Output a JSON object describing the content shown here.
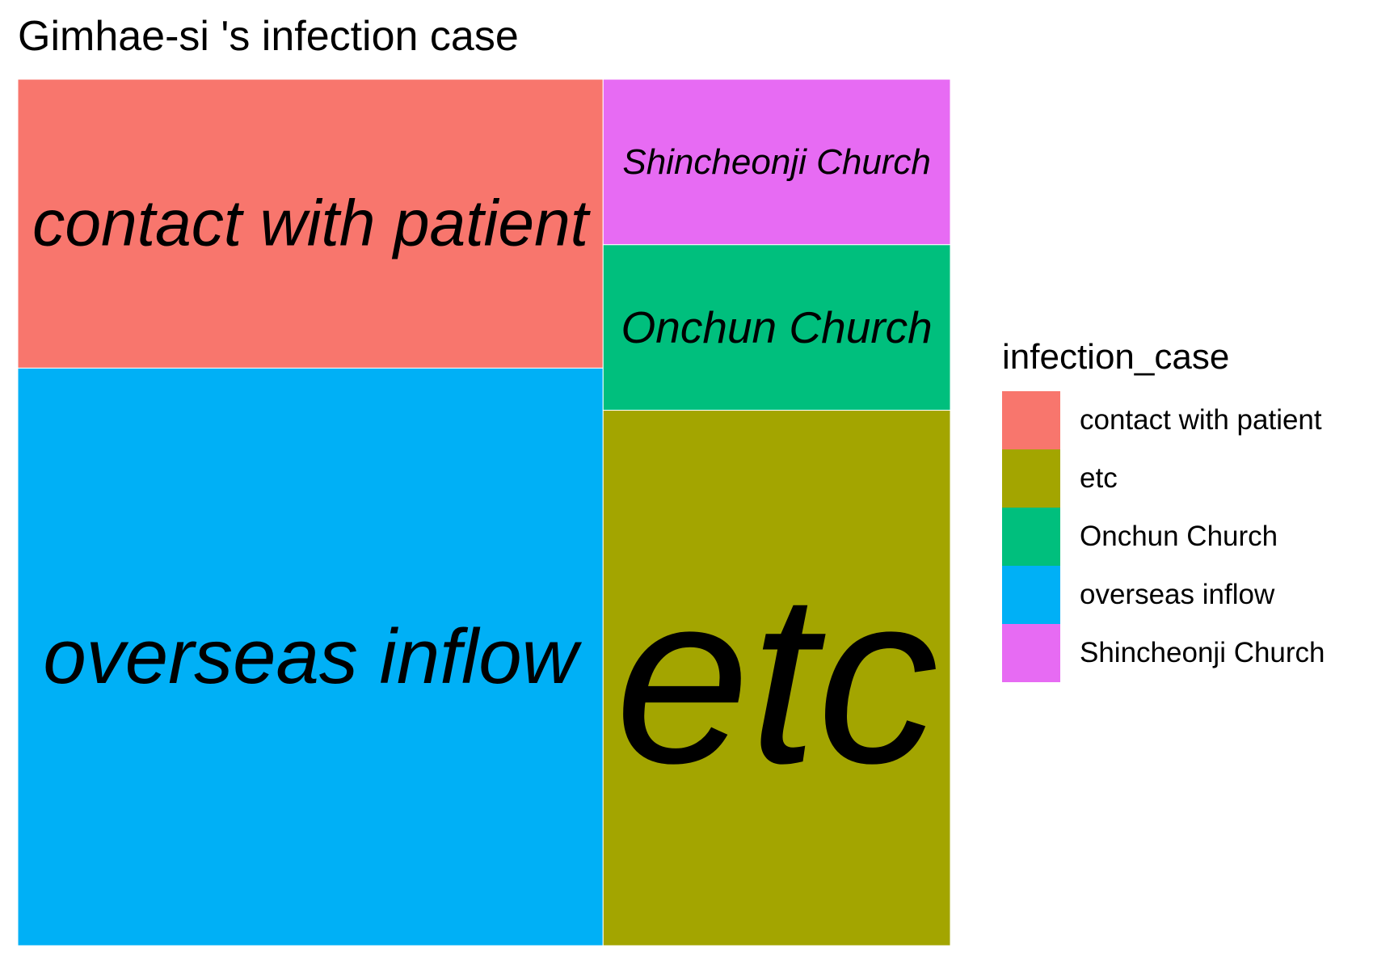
{
  "chart_data": {
    "type": "treemap",
    "title": "Gimhae-si 's infection case",
    "legend_title": "infection_case",
    "legend_position": "right",
    "legend": [
      {
        "label": "contact with patient",
        "color": "#F8766D"
      },
      {
        "label": "etc",
        "color": "#A3A500"
      },
      {
        "label": "Onchun Church",
        "color": "#00BF7D"
      },
      {
        "label": "overseas inflow",
        "color": "#00B0F6"
      },
      {
        "label": "Shincheonji Church",
        "color": "#E76BF3"
      }
    ],
    "tiles": [
      {
        "label": "overseas inflow",
        "value": 20,
        "color": "#00B0F6"
      },
      {
        "label": "etc",
        "value": 11,
        "color": "#A3A500"
      },
      {
        "label": "contact with patient",
        "value": 10,
        "color": "#F8766D"
      },
      {
        "label": "Onchun Church",
        "value": 3.4,
        "color": "#00BF7D"
      },
      {
        "label": "Shincheonji Church",
        "value": 3.4,
        "color": "#E76BF3"
      }
    ]
  }
}
